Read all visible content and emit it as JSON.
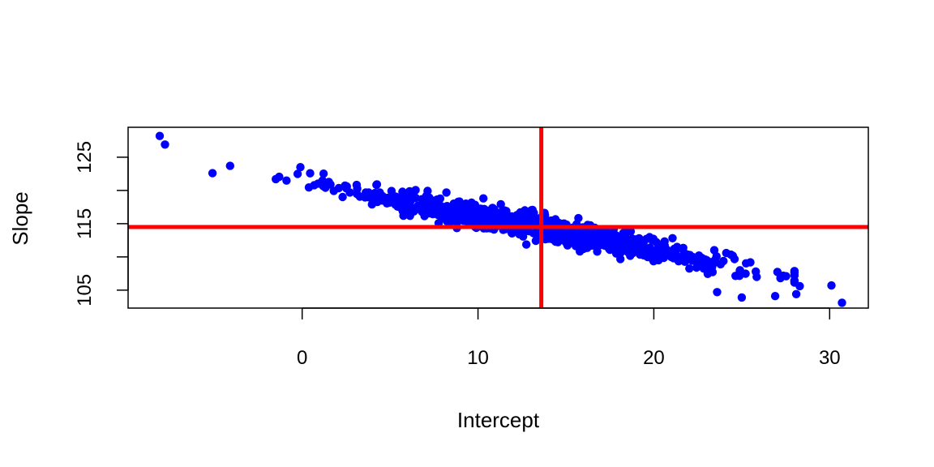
{
  "chart_data": {
    "type": "scatter",
    "title": "",
    "xlabel": "Intercept",
    "ylabel": "Slope",
    "xlim": [
      -9.9,
      32.2
    ],
    "ylim": [
      102.3,
      129.5
    ],
    "x_ticks": [
      0,
      10,
      20,
      30
    ],
    "y_ticks": [
      105,
      110,
      115,
      120,
      125
    ],
    "y_tick_labels": [
      "105",
      "",
      "115",
      "",
      "125"
    ],
    "grid": false,
    "legend": "none",
    "point_color": "#0000ff",
    "reference_line_color": "#ff0000",
    "reference_lines": {
      "vertical_x": 13.6,
      "horizontal_y": 114.5
    },
    "outliers": [
      {
        "x": -8.1,
        "y": 128.2
      },
      {
        "x": -7.8,
        "y": 126.9
      },
      {
        "x": -5.1,
        "y": 122.6
      },
      {
        "x": -4.1,
        "y": 123.7
      },
      {
        "x": -1.5,
        "y": 121.7
      },
      {
        "x": -0.1,
        "y": 123.5
      },
      {
        "x": 30.1,
        "y": 105.7
      },
      {
        "x": 30.7,
        "y": 103.1
      },
      {
        "x": 28.3,
        "y": 105.6
      },
      {
        "x": 28.1,
        "y": 104.4
      },
      {
        "x": 27.2,
        "y": 106.8
      },
      {
        "x": 26.9,
        "y": 104.1
      },
      {
        "x": 25.0,
        "y": 103.9
      },
      {
        "x": 23.6,
        "y": 104.7
      },
      {
        "x": 25.8,
        "y": 107.8
      },
      {
        "x": 24.9,
        "y": 108.0
      },
      {
        "x": 23.8,
        "y": 108.9
      }
    ],
    "bulk_trend": {
      "x_range": [
        -1.5,
        28.0
      ],
      "y_at_x0": 121.4,
      "slope": -0.516,
      "n_points": 1000,
      "residual_sd": 0.9
    }
  }
}
